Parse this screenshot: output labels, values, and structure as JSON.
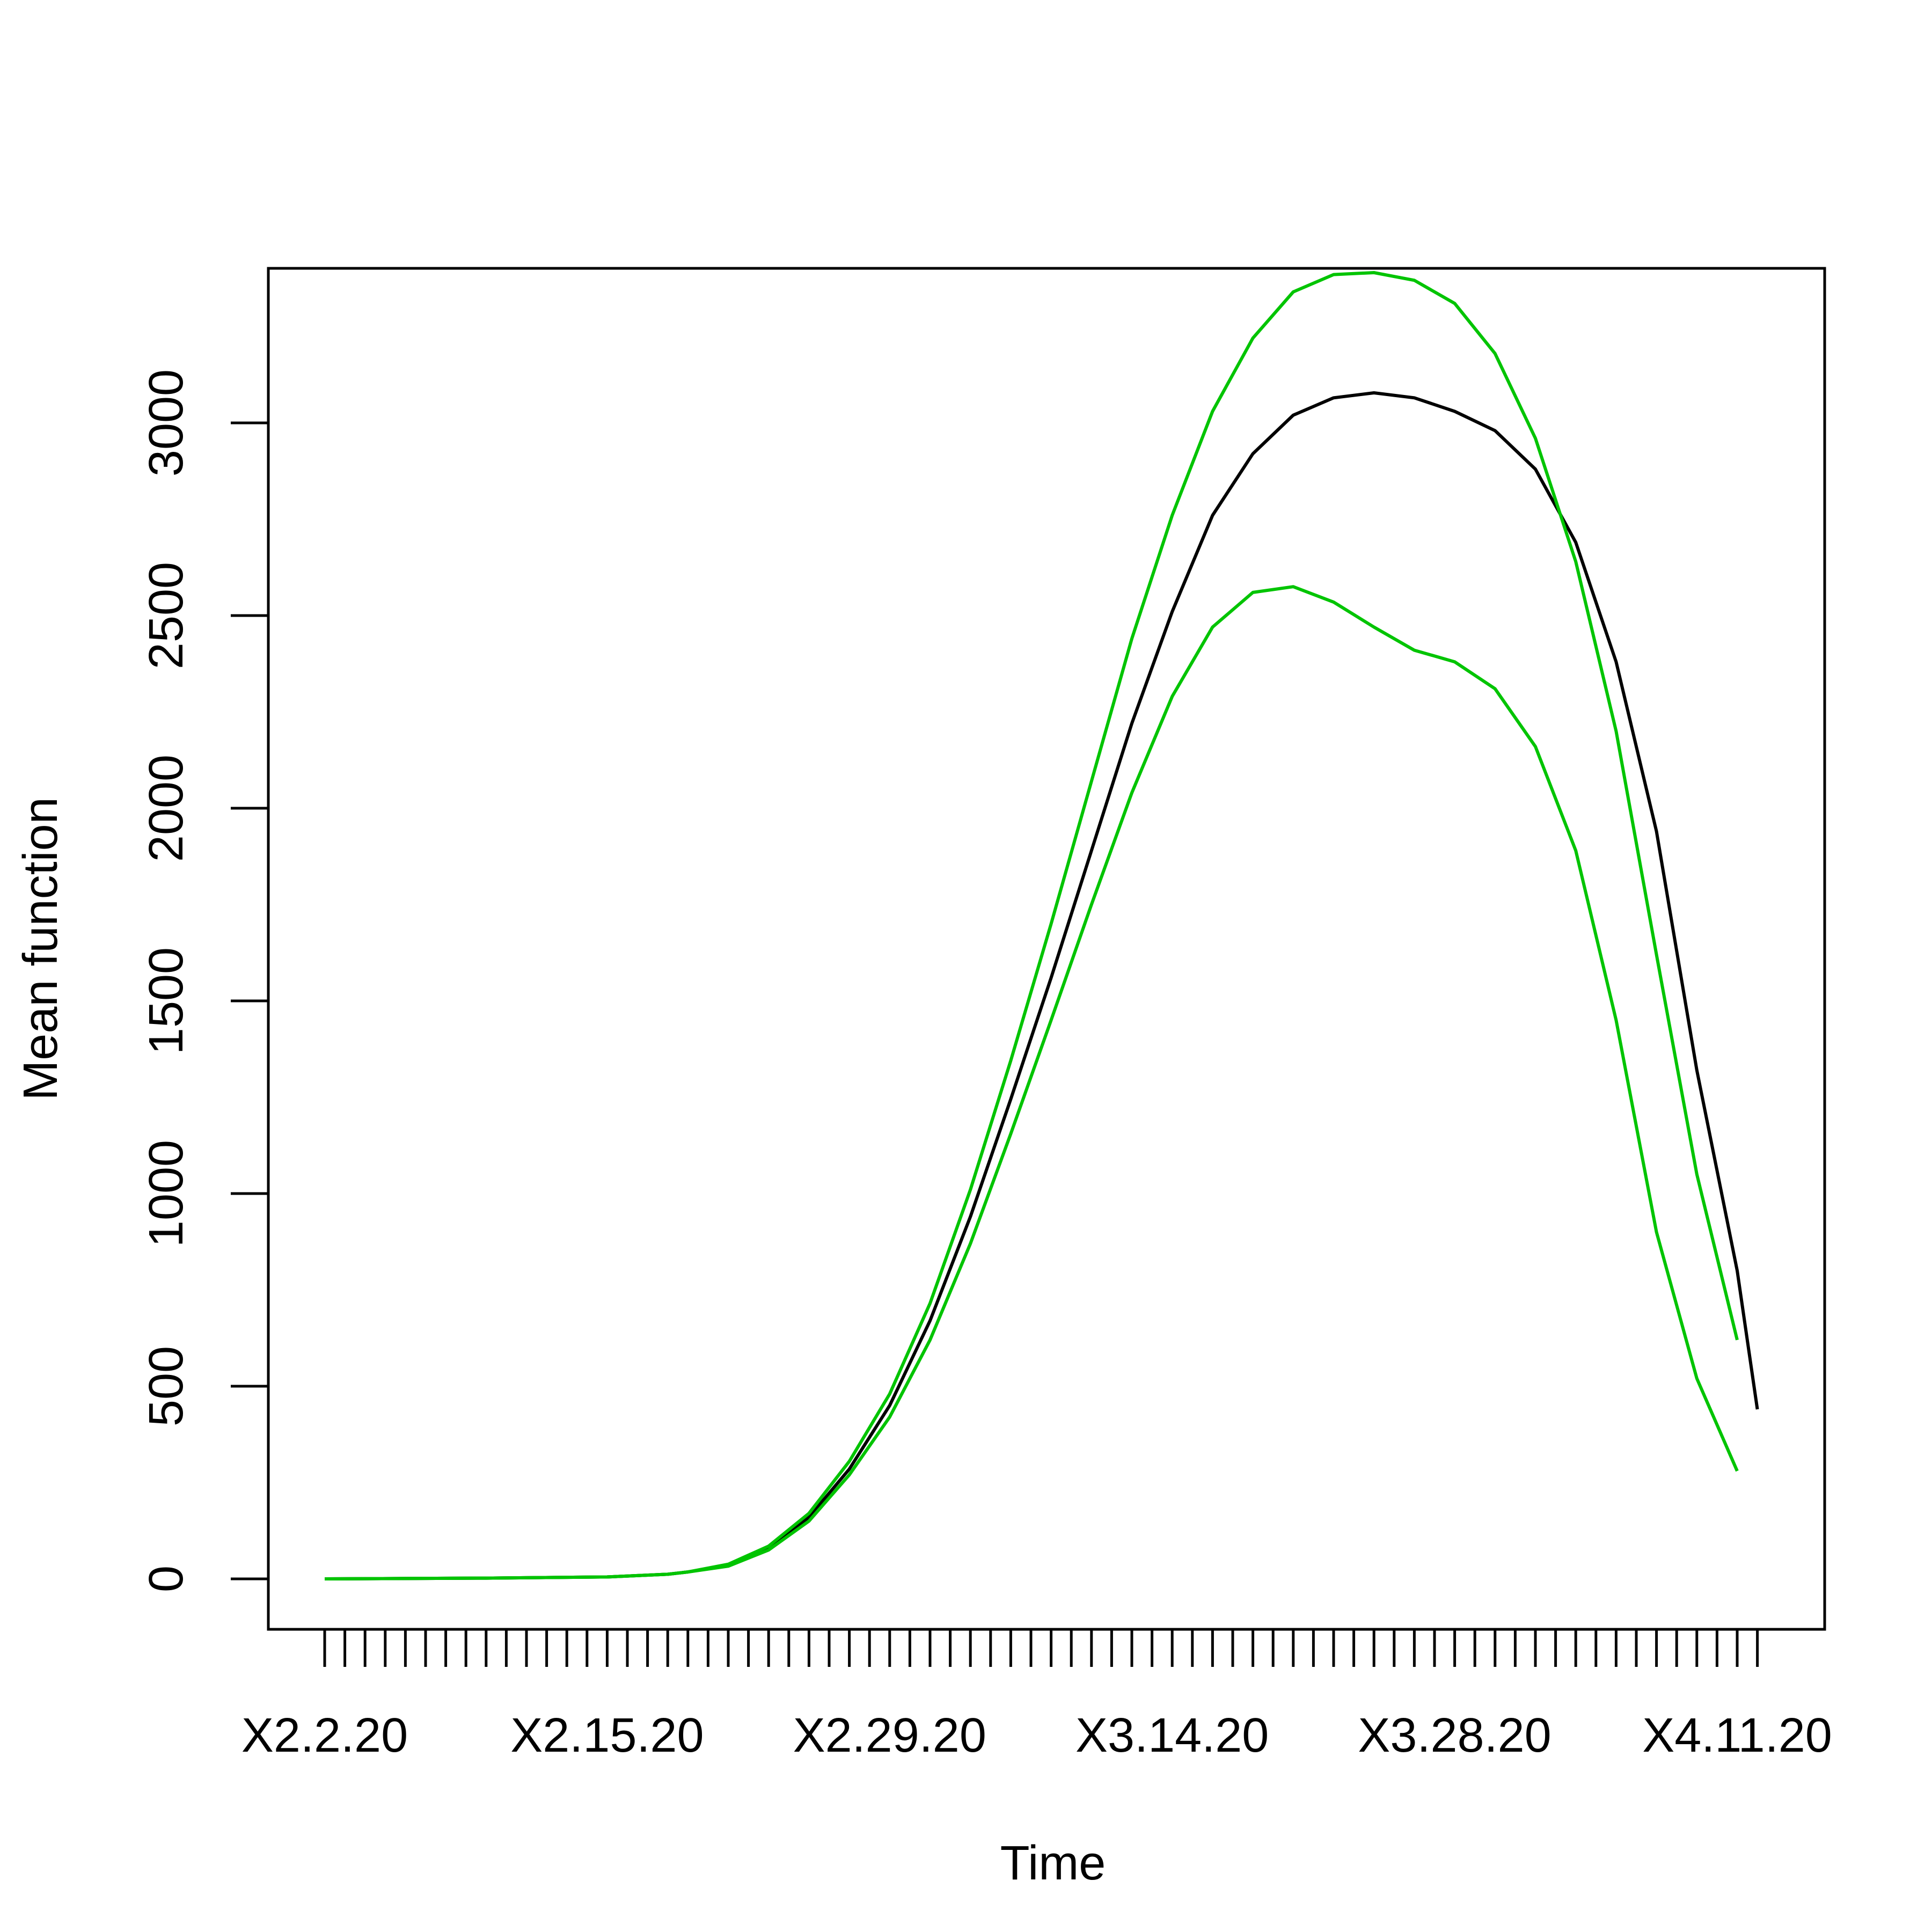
{
  "chart_data": {
    "type": "line",
    "title": "",
    "xlabel": "Time",
    "ylabel": "Mean function",
    "x_tick_labels": [
      "X2.2.20",
      "X2.15.20",
      "X2.29.20",
      "X3.14.20",
      "X3.28.20",
      "X4.11.20"
    ],
    "y_ticks": [
      0,
      500,
      1000,
      1500,
      2000,
      2500,
      3000
    ],
    "ylim": [
      -130,
      3400
    ],
    "grid": false,
    "legend": "none",
    "series": [
      {
        "color": "#000000",
        "points": [
          [
            0,
            0
          ],
          [
            8,
            2
          ],
          [
            14,
            5
          ],
          [
            17,
            12
          ],
          [
            18,
            18
          ],
          [
            20,
            35
          ],
          [
            22,
            80
          ],
          [
            24,
            160
          ],
          [
            26,
            285
          ],
          [
            28,
            450
          ],
          [
            30,
            670
          ],
          [
            32,
            940
          ],
          [
            34,
            1245
          ],
          [
            36,
            1560
          ],
          [
            38,
            1890
          ],
          [
            40,
            2220
          ],
          [
            42,
            2510
          ],
          [
            44,
            2760
          ],
          [
            46,
            2920
          ],
          [
            48,
            3020
          ],
          [
            50,
            3065
          ],
          [
            52,
            3078
          ],
          [
            54,
            3065
          ],
          [
            56,
            3030
          ],
          [
            58,
            2980
          ],
          [
            60,
            2880
          ],
          [
            62,
            2690
          ],
          [
            64,
            2380
          ],
          [
            66,
            1940
          ],
          [
            68,
            1320
          ],
          [
            70,
            800
          ],
          [
            71,
            440
          ]
        ]
      },
      {
        "color": "#00c400",
        "points": [
          [
            0,
            0
          ],
          [
            8,
            2
          ],
          [
            14,
            5
          ],
          [
            17,
            12
          ],
          [
            18,
            18
          ],
          [
            20,
            38
          ],
          [
            22,
            85
          ],
          [
            24,
            170
          ],
          [
            26,
            305
          ],
          [
            28,
            480
          ],
          [
            30,
            715
          ],
          [
            32,
            1010
          ],
          [
            34,
            1345
          ],
          [
            36,
            1700
          ],
          [
            38,
            2070
          ],
          [
            40,
            2440
          ],
          [
            42,
            2760
          ],
          [
            44,
            3030
          ],
          [
            46,
            3220
          ],
          [
            48,
            3340
          ],
          [
            50,
            3385
          ],
          [
            52,
            3390
          ],
          [
            54,
            3370
          ],
          [
            56,
            3310
          ],
          [
            58,
            3180
          ],
          [
            60,
            2960
          ],
          [
            62,
            2640
          ],
          [
            64,
            2200
          ],
          [
            66,
            1620
          ],
          [
            68,
            1050
          ],
          [
            70,
            620
          ]
        ]
      },
      {
        "color": "#00c400",
        "points": [
          [
            0,
            0
          ],
          [
            8,
            2
          ],
          [
            14,
            5
          ],
          [
            17,
            12
          ],
          [
            18,
            18
          ],
          [
            20,
            33
          ],
          [
            22,
            75
          ],
          [
            24,
            150
          ],
          [
            26,
            270
          ],
          [
            28,
            420
          ],
          [
            30,
            620
          ],
          [
            32,
            870
          ],
          [
            34,
            1155
          ],
          [
            36,
            1450
          ],
          [
            38,
            1750
          ],
          [
            40,
            2040
          ],
          [
            42,
            2290
          ],
          [
            44,
            2470
          ],
          [
            46,
            2560
          ],
          [
            48,
            2575
          ],
          [
            50,
            2535
          ],
          [
            52,
            2470
          ],
          [
            54,
            2410
          ],
          [
            56,
            2380
          ],
          [
            58,
            2310
          ],
          [
            60,
            2160
          ],
          [
            62,
            1890
          ],
          [
            64,
            1450
          ],
          [
            66,
            900
          ],
          [
            68,
            520
          ],
          [
            70,
            280
          ]
        ]
      }
    ]
  }
}
